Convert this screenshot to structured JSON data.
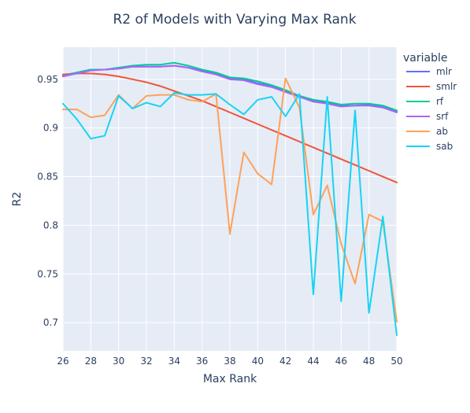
{
  "chart_data": {
    "type": "line",
    "title": "R2 of Models with Varying Max Rank",
    "xlabel": "Max Rank",
    "ylabel": "R2",
    "xlim": [
      26,
      50
    ],
    "ylim": [
      0.671,
      0.983
    ],
    "xticks": [
      26,
      28,
      30,
      32,
      34,
      36,
      38,
      40,
      42,
      44,
      46,
      48,
      50
    ],
    "yticks": [
      0.7,
      0.75,
      0.8,
      0.85,
      0.9,
      0.95
    ],
    "ytick_labels": [
      "0.7",
      "0.75",
      "0.8",
      "0.85",
      "0.9",
      "0.95"
    ],
    "grid": true,
    "legend": {
      "title": "variable",
      "position": "right"
    },
    "x": [
      26,
      27,
      28,
      29,
      30,
      31,
      32,
      33,
      34,
      35,
      36,
      37,
      38,
      39,
      40,
      41,
      42,
      43,
      44,
      45,
      46,
      47,
      48,
      49,
      50
    ],
    "series": [
      {
        "name": "mlr",
        "color": "#636efa",
        "values": [
          0.954,
          0.957,
          0.96,
          0.96,
          0.961,
          0.963,
          0.963,
          0.963,
          0.964,
          0.962,
          0.959,
          0.956,
          0.951,
          0.95,
          0.946,
          0.943,
          0.938,
          0.933,
          0.928,
          0.926,
          0.923,
          0.923,
          0.924,
          0.922,
          0.917
        ]
      },
      {
        "name": "smlr",
        "color": "#ef553b",
        "values": [
          0.955,
          0.956,
          0.956,
          0.955,
          0.953,
          0.95,
          0.947,
          0.943,
          0.938,
          0.933,
          0.928,
          0.922,
          0.916,
          0.91,
          0.904,
          0.898,
          0.892,
          0.886,
          0.88,
          0.874,
          0.868,
          0.862,
          0.856,
          0.85,
          0.844
        ]
      },
      {
        "name": "rf",
        "color": "#00cc96",
        "values": [
          0.953,
          0.957,
          0.96,
          0.96,
          0.962,
          0.964,
          0.965,
          0.965,
          0.967,
          0.964,
          0.96,
          0.957,
          0.952,
          0.951,
          0.948,
          0.944,
          0.939,
          0.933,
          0.929,
          0.927,
          0.924,
          0.925,
          0.925,
          0.923,
          0.918
        ]
      },
      {
        "name": "srf",
        "color": "#ab63fa",
        "values": [
          0.953,
          0.956,
          0.959,
          0.96,
          0.961,
          0.963,
          0.963,
          0.963,
          0.964,
          0.962,
          0.958,
          0.955,
          0.95,
          0.949,
          0.945,
          0.942,
          0.937,
          0.932,
          0.927,
          0.925,
          0.922,
          0.923,
          0.923,
          0.921,
          0.916
        ]
      },
      {
        "name": "ab",
        "color": "#ffa15a",
        "values": [
          0.919,
          0.919,
          0.911,
          0.913,
          0.934,
          0.92,
          0.933,
          0.934,
          0.934,
          0.929,
          0.927,
          0.935,
          0.791,
          0.875,
          0.853,
          0.842,
          0.951,
          0.921,
          0.811,
          0.841,
          0.781,
          0.74,
          0.811,
          0.804,
          0.701
        ]
      },
      {
        "name": "sab",
        "color": "#19d3f3",
        "values": [
          0.925,
          0.909,
          0.889,
          0.892,
          0.933,
          0.92,
          0.926,
          0.922,
          0.936,
          0.934,
          0.934,
          0.935,
          0.924,
          0.914,
          0.929,
          0.932,
          0.912,
          0.935,
          0.729,
          0.932,
          0.722,
          0.918,
          0.71,
          0.809,
          0.687
        ]
      }
    ]
  }
}
